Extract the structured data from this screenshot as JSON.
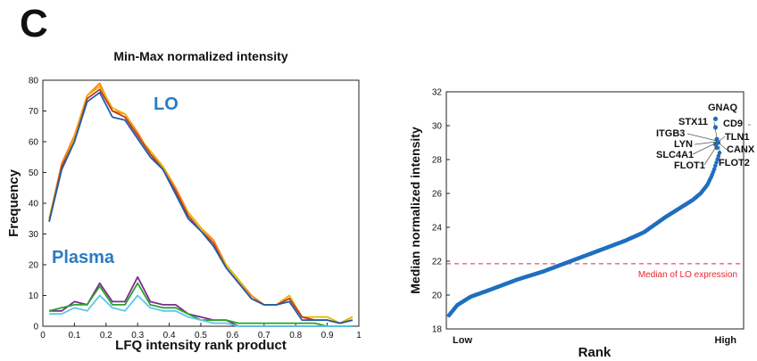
{
  "panel_label": "C",
  "chart_data": [
    {
      "type": "line",
      "title": "Min-Max normalized intensity",
      "xlabel": "LFQ intensity rank product",
      "ylabel": "Frequency",
      "xlim": [
        0,
        1
      ],
      "ylim": [
        0,
        80
      ],
      "xticks": [
        "0",
        "0.1",
        "0.2",
        "0.3",
        "0.4",
        "0.5",
        "0.6",
        "0.7",
        "0.8",
        "0.9",
        "1"
      ],
      "yticks": [
        "0",
        "10",
        "20",
        "30",
        "40",
        "50",
        "60",
        "70",
        "80"
      ],
      "labels": {
        "lo": "LO",
        "plasma": "Plasma"
      },
      "label_colors": {
        "lo": "#2a7bc6",
        "plasma": "#2a7bc6"
      },
      "x": [
        0.02,
        0.06,
        0.1,
        0.14,
        0.18,
        0.22,
        0.26,
        0.3,
        0.34,
        0.38,
        0.42,
        0.46,
        0.5,
        0.54,
        0.58,
        0.62,
        0.66,
        0.7,
        0.74,
        0.78,
        0.82,
        0.86,
        0.9,
        0.94,
        0.98
      ],
      "series": [
        {
          "color": "#ff7f0e",
          "values": [
            35,
            53,
            62,
            75,
            79,
            70,
            69,
            63,
            56,
            52,
            45,
            37,
            32,
            28,
            20,
            15,
            10,
            7,
            7,
            9,
            3,
            2,
            2,
            1,
            3
          ]
        },
        {
          "color": "#e8b400",
          "values": [
            35,
            52,
            61,
            75,
            78,
            71,
            69,
            62,
            57,
            52,
            44,
            37,
            32,
            27,
            20,
            15,
            9,
            7,
            7,
            10,
            3,
            3,
            3,
            1,
            3
          ]
        },
        {
          "color": "#c0392b",
          "values": [
            34,
            52,
            60,
            74,
            77,
            70,
            68,
            62,
            56,
            51,
            44,
            36,
            31,
            27,
            19,
            14,
            9,
            7,
            7,
            9,
            3,
            2,
            2,
            1,
            2
          ]
        },
        {
          "color": "#1f5fa8",
          "values": [
            34,
            51,
            60,
            73,
            76,
            68,
            67,
            61,
            55,
            51,
            43,
            35,
            31,
            26,
            19,
            14,
            9,
            7,
            7,
            8,
            2,
            2,
            2,
            1,
            2
          ]
        },
        {
          "color": "#7b2d8e",
          "values": [
            5,
            5,
            8,
            7,
            14,
            8,
            8,
            16,
            8,
            7,
            7,
            4,
            3,
            2,
            2,
            0,
            0,
            0,
            0,
            0,
            0,
            0,
            0,
            0,
            0
          ]
        },
        {
          "color": "#2ca02c",
          "values": [
            5,
            6,
            7,
            7,
            13,
            7,
            7,
            14,
            7,
            6,
            6,
            4,
            2,
            2,
            2,
            1,
            1,
            1,
            1,
            1,
            1,
            1,
            0,
            0,
            0
          ]
        },
        {
          "color": "#5bc8e8",
          "values": [
            4,
            4,
            6,
            5,
            10,
            6,
            5,
            10,
            6,
            5,
            5,
            3,
            2,
            1,
            1,
            0,
            0,
            0,
            0,
            0,
            0,
            0,
            0,
            0,
            0
          ]
        }
      ]
    },
    {
      "type": "scatter",
      "xlabel": "Rank",
      "ylabel": "Median normalized intensity",
      "ylim": [
        18,
        32
      ],
      "yticks": [
        "18",
        "20",
        "22",
        "24",
        "26",
        "28",
        "30",
        "32"
      ],
      "x_tick_labels": {
        "low": "Low",
        "high": "High"
      },
      "series_color": "#1f6fbf",
      "curve": {
        "rank_fraction": [
          0,
          0.03,
          0.08,
          0.15,
          0.25,
          0.35,
          0.45,
          0.55,
          0.65,
          0.72,
          0.8,
          0.86,
          0.9,
          0.93,
          0.955,
          0.97,
          0.98,
          0.99,
          1.0
        ],
        "intensity": [
          18.8,
          19.4,
          19.9,
          20.3,
          20.9,
          21.4,
          22.0,
          22.6,
          23.2,
          23.7,
          24.6,
          25.2,
          25.6,
          26.0,
          26.5,
          27.0,
          27.4,
          27.9,
          28.4
        ]
      },
      "median_line": {
        "value": 21.85,
        "label": "Median of LO expression",
        "color": "#e8262d"
      },
      "top_points": [
        {
          "rank_fraction": 0.985,
          "intensity": 30.4
        },
        {
          "rank_fraction": 0.985,
          "intensity": 29.9
        },
        {
          "rank_fraction": 0.99,
          "intensity": 29.2
        },
        {
          "rank_fraction": 0.995,
          "intensity": 29.0
        },
        {
          "rank_fraction": 0.985,
          "intensity": 28.9
        },
        {
          "rank_fraction": 0.99,
          "intensity": 28.7
        }
      ],
      "annotations": [
        {
          "text": "GNAQ"
        },
        {
          "text": "STX11"
        },
        {
          "text": "CD9"
        },
        {
          "text": "ITGB3"
        },
        {
          "text": "TLN1"
        },
        {
          "text": "LYN"
        },
        {
          "text": "SLC4A1"
        },
        {
          "text": "CANX"
        },
        {
          "text": "FLOT1"
        },
        {
          "text": "FLOT2"
        }
      ]
    }
  ]
}
